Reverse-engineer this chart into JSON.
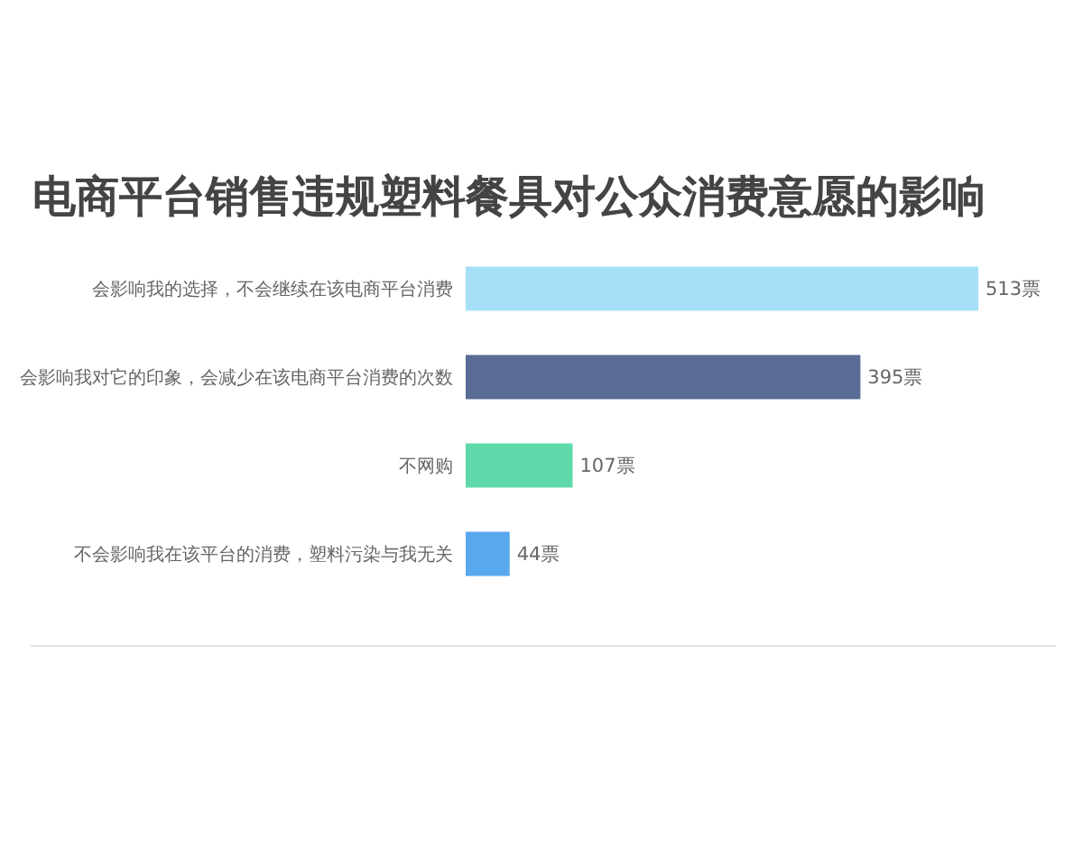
{
  "chart_data": {
    "type": "bar",
    "orientation": "horizontal",
    "title": "电商平台销售违规塑料餐具对公众消费意愿的影响",
    "categories": [
      "会影响我的选择，不会继续在该电商平台消费",
      "会影响我对它的印象，会减少在该电商平台消费的次数",
      "不网购",
      "不会影响我在该平台的消费，塑料污染与我无关"
    ],
    "values": [
      513,
      395,
      107,
      44
    ],
    "colors": [
      "#a6e0f8",
      "#5a6b95",
      "#5fd8aa",
      "#58a8ee"
    ],
    "value_labels": [
      "513票",
      "395票",
      "107票",
      "44票"
    ]
  }
}
